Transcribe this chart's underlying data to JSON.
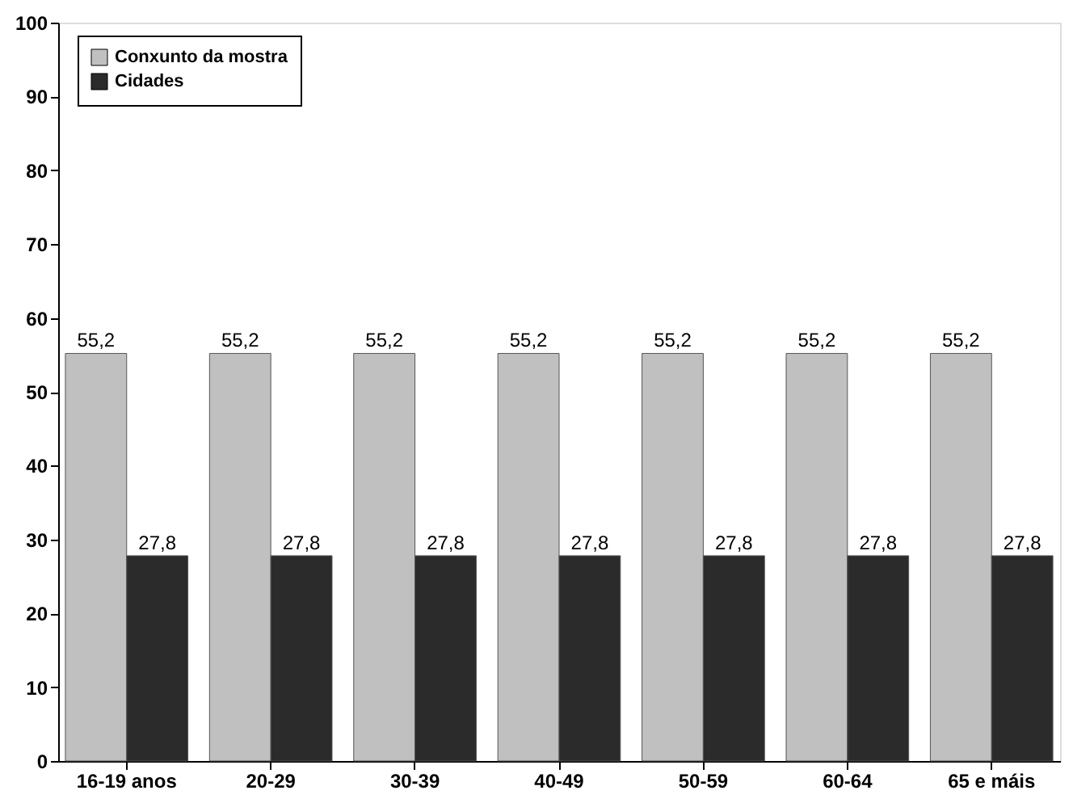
{
  "chart_data": {
    "type": "bar",
    "categories": [
      "16-19 anos",
      "20-29",
      "30-39",
      "40-49",
      "50-59",
      "60-64",
      "65 e máis"
    ],
    "series": [
      {
        "name": "Conxunto da mostra",
        "color": "#c0c0c0",
        "values": [
          55.2,
          55.2,
          55.2,
          55.2,
          55.2,
          55.2,
          55.2
        ],
        "value_labels": [
          "55,2",
          "55,2",
          "55,2",
          "55,2",
          "55,2",
          "55,2",
          "55,2"
        ]
      },
      {
        "name": "Cidades",
        "color": "#2b2b2b",
        "values": [
          27.8,
          27.8,
          27.8,
          27.8,
          27.8,
          27.8,
          27.8
        ],
        "value_labels": [
          "27,8",
          "27,8",
          "27,8",
          "27,8",
          "27,8",
          "27,8",
          "27,8"
        ]
      }
    ],
    "ylim": [
      0,
      100
    ],
    "yticks": [
      0,
      10,
      20,
      30,
      40,
      50,
      60,
      70,
      80,
      90,
      100
    ],
    "grid": false,
    "legend": "top left"
  }
}
